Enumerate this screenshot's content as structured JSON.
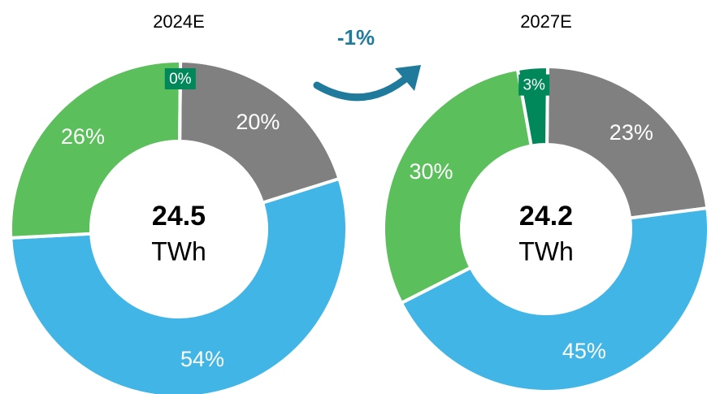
{
  "annotation": "-1%",
  "chart_data": [
    {
      "type": "donut",
      "title": "2024E",
      "center_value": "24.5",
      "center_unit": "TWh",
      "values": [
        20,
        54,
        26,
        0
      ],
      "value_labels": [
        "20%",
        "54%",
        "26%",
        "0%"
      ],
      "colors": [
        "#808080",
        "#41b6e6",
        "#5bbf5b",
        "#00875a"
      ]
    },
    {
      "type": "donut",
      "title": "2027E",
      "center_value": "24.2",
      "center_unit": "TWh",
      "values": [
        23,
        45,
        30,
        3
      ],
      "value_labels": [
        "23%",
        "45%",
        "30%",
        "3%"
      ],
      "colors": [
        "#808080",
        "#41b6e6",
        "#5bbf5b",
        "#00875a"
      ]
    }
  ]
}
